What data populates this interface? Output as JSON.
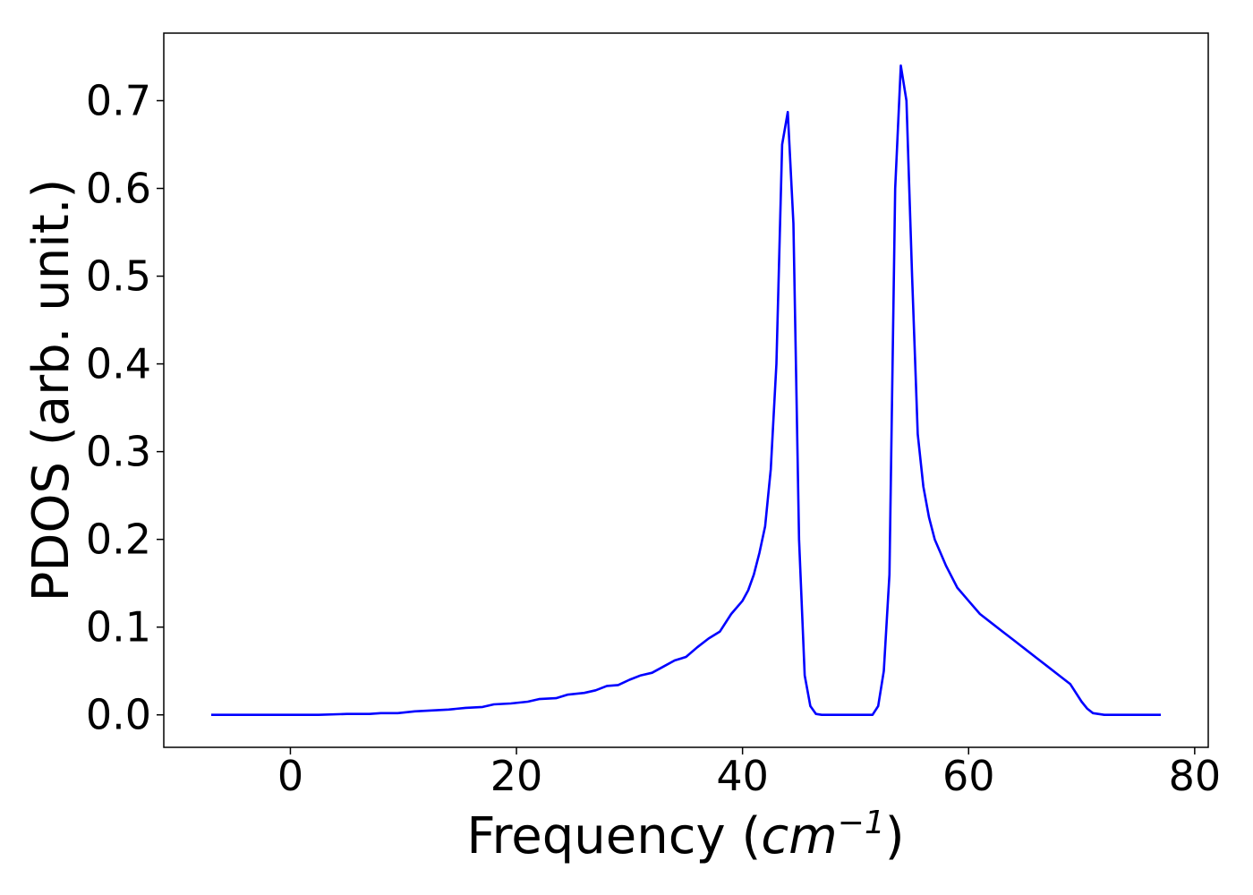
{
  "chart_data": {
    "type": "line",
    "title": "",
    "xlabel": "Frequency (",
    "xlabel_math": "cm",
    "xlabel_sup": "−1",
    "xlabel_close": ")",
    "ylabel": "PDOS (arb. unit.)",
    "xlim": [
      -11.2,
      81.2
    ],
    "ylim": [
      -0.037,
      0.777
    ],
    "xticks": [
      0,
      20,
      40,
      60,
      80
    ],
    "xtick_labels": [
      "0",
      "20",
      "40",
      "60",
      "80"
    ],
    "yticks": [
      0.0,
      0.1,
      0.2,
      0.3,
      0.4,
      0.5,
      0.6,
      0.7
    ],
    "ytick_labels": [
      "0.0",
      "0.1",
      "0.2",
      "0.3",
      "0.4",
      "0.5",
      "0.6",
      "0.7"
    ],
    "grid": false,
    "legend": "none",
    "series": [
      {
        "color": "#0000ff",
        "x": [
          -7.0,
          0.0,
          2.5,
          5.0,
          7.0,
          8.0,
          9.5,
          11.0,
          12.5,
          14.0,
          15.5,
          17.0,
          18.0,
          19.5,
          21.0,
          22.0,
          23.5,
          24.5,
          26.0,
          27.0,
          28.0,
          29.0,
          30.0,
          31.0,
          32.0,
          33.0,
          34.0,
          35.0,
          36.0,
          37.0,
          38.0,
          39.0,
          40.0,
          40.5,
          41.0,
          41.5,
          42.0,
          42.5,
          43.0,
          43.5,
          44.0,
          44.5,
          45.0,
          45.5,
          46.0,
          46.5,
          47.0,
          48.0,
          49.0,
          50.0,
          51.5,
          52.0,
          52.5,
          53.0,
          53.5,
          54.0,
          54.5,
          55.0,
          55.5,
          56.0,
          56.5,
          57.0,
          57.5,
          58.0,
          59.0,
          60.0,
          61.0,
          62.0,
          63.0,
          64.0,
          65.0,
          66.0,
          67.0,
          68.0,
          69.0,
          70.0,
          70.5,
          71.0,
          72.0,
          75.0,
          77.0
        ],
        "y": [
          0.0,
          0.0,
          0.0,
          0.001,
          0.001,
          0.002,
          0.002,
          0.004,
          0.005,
          0.006,
          0.008,
          0.009,
          0.012,
          0.013,
          0.015,
          0.018,
          0.019,
          0.023,
          0.025,
          0.028,
          0.033,
          0.034,
          0.04,
          0.045,
          0.048,
          0.055,
          0.062,
          0.066,
          0.077,
          0.087,
          0.095,
          0.115,
          0.13,
          0.142,
          0.16,
          0.185,
          0.215,
          0.28,
          0.4,
          0.65,
          0.687,
          0.56,
          0.2,
          0.045,
          0.01,
          0.001,
          0.0,
          0.0,
          0.0,
          0.0,
          0.0,
          0.01,
          0.05,
          0.16,
          0.6,
          0.74,
          0.7,
          0.5,
          0.32,
          0.26,
          0.225,
          0.2,
          0.185,
          0.17,
          0.145,
          0.13,
          0.115,
          0.105,
          0.095,
          0.085,
          0.075,
          0.065,
          0.055,
          0.045,
          0.035,
          0.015,
          0.007,
          0.002,
          0.0,
          0.0,
          0.0
        ]
      }
    ]
  }
}
